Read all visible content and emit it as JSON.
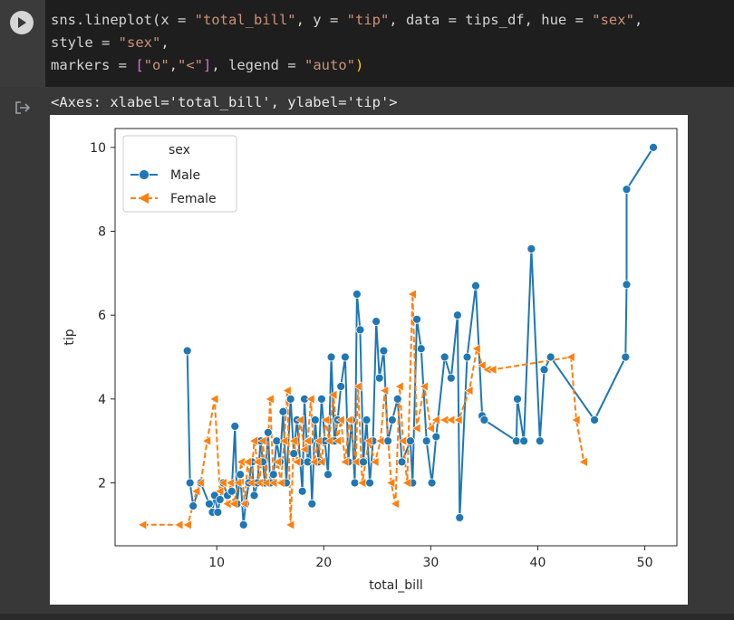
{
  "code": {
    "line1": [
      {
        "t": "sns.lineplot(x = ",
        "c": "#d4d4d4"
      },
      {
        "t": "\"total_bill\"",
        "c": "#ce9178"
      },
      {
        "t": ", y = ",
        "c": "#d4d4d4"
      },
      {
        "t": "\"tip\"",
        "c": "#ce9178"
      },
      {
        "t": ", data = tips_df, hue = ",
        "c": "#d4d4d4"
      },
      {
        "t": "\"sex\"",
        "c": "#ce9178"
      },
      {
        "t": ",",
        "c": "#d4d4d4"
      }
    ],
    "line2": [
      {
        "t": "style = ",
        "c": "#d4d4d4"
      },
      {
        "t": "\"sex\"",
        "c": "#ce9178"
      },
      {
        "t": ",",
        "c": "#d4d4d4"
      }
    ],
    "line3": [
      {
        "t": "markers = ",
        "c": "#d4d4d4"
      },
      {
        "t": "[",
        "c": "#da70d6"
      },
      {
        "t": "\"o\"",
        "c": "#ce9178"
      },
      {
        "t": ",",
        "c": "#d4d4d4"
      },
      {
        "t": "\"<\"",
        "c": "#ce9178"
      },
      {
        "t": "]",
        "c": "#da70d6"
      },
      {
        "t": ", legend = ",
        "c": "#d4d4d4"
      },
      {
        "t": "\"auto\"",
        "c": "#ce9178"
      },
      {
        "t": ")",
        "c": "#ffd700"
      }
    ]
  },
  "output_text": "<Axes: xlabel='total_bill', ylabel='tip'>",
  "icons": {
    "run": "play-icon",
    "output": "output-redirect-icon"
  },
  "chart_data": {
    "type": "line",
    "xlabel": "total_bill",
    "ylabel": "tip",
    "xlim": [
      0.5,
      53
    ],
    "ylim": [
      0.5,
      10.45
    ],
    "xticks": [
      10,
      20,
      30,
      40,
      50
    ],
    "yticks": [
      2,
      4,
      6,
      8,
      10
    ],
    "legend": {
      "title": "sex",
      "placement": "top-left"
    },
    "series": [
      {
        "name": "Male",
        "color": "#1f77b4",
        "dash": "solid",
        "marker": "o",
        "points": [
          [
            7.25,
            5.15
          ],
          [
            7.5,
            2.0
          ],
          [
            7.8,
            1.45
          ],
          [
            8.5,
            2.0
          ],
          [
            9.3,
            1.5
          ],
          [
            9.6,
            1.3
          ],
          [
            9.8,
            1.7
          ],
          [
            10.1,
            1.3
          ],
          [
            10.3,
            1.6
          ],
          [
            10.6,
            2.0
          ],
          [
            11.0,
            1.7
          ],
          [
            11.4,
            1.8
          ],
          [
            11.7,
            3.35
          ],
          [
            11.9,
            1.5
          ],
          [
            12.2,
            2.2
          ],
          [
            12.5,
            1.0
          ],
          [
            12.7,
            1.5
          ],
          [
            13.0,
            2.0
          ],
          [
            13.3,
            2.5
          ],
          [
            13.5,
            1.7
          ],
          [
            13.8,
            2.0
          ],
          [
            14.1,
            3.0
          ],
          [
            14.3,
            2.5
          ],
          [
            14.5,
            2.0
          ],
          [
            14.8,
            3.2
          ],
          [
            15.0,
            2.0
          ],
          [
            15.3,
            2.2
          ],
          [
            15.6,
            3.0
          ],
          [
            15.9,
            2.5
          ],
          [
            16.2,
            3.7
          ],
          [
            16.5,
            2.0
          ],
          [
            16.9,
            4.0
          ],
          [
            17.2,
            2.7
          ],
          [
            17.5,
            3.5
          ],
          [
            17.8,
            2.5
          ],
          [
            18.0,
            1.8
          ],
          [
            18.2,
            4.0
          ],
          [
            18.5,
            2.5
          ],
          [
            18.7,
            3.0
          ],
          [
            18.9,
            1.5
          ],
          [
            19.2,
            3.5
          ],
          [
            19.5,
            2.5
          ],
          [
            19.8,
            4.0
          ],
          [
            20.1,
            3.0
          ],
          [
            20.4,
            2.2
          ],
          [
            20.7,
            5.0
          ],
          [
            21.0,
            3.0
          ],
          [
            21.3,
            3.5
          ],
          [
            21.6,
            4.3
          ],
          [
            22.0,
            5.0
          ],
          [
            22.3,
            2.5
          ],
          [
            22.6,
            3.5
          ],
          [
            22.9,
            2.0
          ],
          [
            23.1,
            6.5
          ],
          [
            23.4,
            5.65
          ],
          [
            23.7,
            2.5
          ],
          [
            24.0,
            3.5
          ],
          [
            24.3,
            2.0
          ],
          [
            24.6,
            3.0
          ],
          [
            24.9,
            5.85
          ],
          [
            25.2,
            4.5
          ],
          [
            25.6,
            5.15
          ],
          [
            26.0,
            3.0
          ],
          [
            26.4,
            3.5
          ],
          [
            26.9,
            4.0
          ],
          [
            27.3,
            2.5
          ],
          [
            28.1,
            3.0
          ],
          [
            28.3,
            2.0
          ],
          [
            28.7,
            5.9
          ],
          [
            29.1,
            5.2
          ],
          [
            29.6,
            3.0
          ],
          [
            30.1,
            2.0
          ],
          [
            30.5,
            3.1
          ],
          [
            31.3,
            5.0
          ],
          [
            31.9,
            4.5
          ],
          [
            32.5,
            6.0
          ],
          [
            32.7,
            1.17
          ],
          [
            33.4,
            5.0
          ],
          [
            34.2,
            6.7
          ],
          [
            34.8,
            3.6
          ],
          [
            35.0,
            3.5
          ],
          [
            38.0,
            3.0
          ],
          [
            38.1,
            4.0
          ],
          [
            38.7,
            3.0
          ],
          [
            39.4,
            7.58
          ],
          [
            40.2,
            3.0
          ],
          [
            40.6,
            4.7
          ],
          [
            41.2,
            5.0
          ],
          [
            45.3,
            3.5
          ],
          [
            48.2,
            5.0
          ],
          [
            48.3,
            6.73
          ],
          [
            48.3,
            9.0
          ],
          [
            50.8,
            10.0
          ]
        ]
      },
      {
        "name": "Female",
        "color": "#ff7f0e",
        "dash": "6,3",
        "marker": "<",
        "points": [
          [
            3.1,
            1.0
          ],
          [
            6.5,
            1.0
          ],
          [
            7.3,
            1.0
          ],
          [
            8.1,
            1.8
          ],
          [
            8.5,
            2.0
          ],
          [
            9.1,
            3.0
          ],
          [
            9.8,
            4.0
          ],
          [
            10.3,
            1.8
          ],
          [
            10.6,
            2.0
          ],
          [
            11.0,
            1.5
          ],
          [
            11.3,
            2.0
          ],
          [
            11.6,
            1.5
          ],
          [
            12.0,
            2.0
          ],
          [
            12.3,
            2.5
          ],
          [
            12.6,
            1.5
          ],
          [
            12.9,
            2.5
          ],
          [
            13.2,
            2.0
          ],
          [
            13.5,
            3.0
          ],
          [
            13.8,
            2.5
          ],
          [
            14.0,
            2.0
          ],
          [
            14.3,
            3.0
          ],
          [
            14.6,
            2.0
          ],
          [
            15.0,
            4.0
          ],
          [
            15.3,
            2.0
          ],
          [
            15.7,
            2.5
          ],
          [
            16.0,
            2.0
          ],
          [
            16.3,
            3.0
          ],
          [
            16.6,
            4.2
          ],
          [
            16.9,
            1.0
          ],
          [
            17.2,
            3.0
          ],
          [
            17.5,
            2.5
          ],
          [
            17.8,
            3.5
          ],
          [
            18.2,
            2.8
          ],
          [
            18.5,
            3.0
          ],
          [
            18.8,
            4.0
          ],
          [
            19.1,
            2.5
          ],
          [
            19.5,
            3.0
          ],
          [
            19.8,
            2.5
          ],
          [
            20.2,
            3.5
          ],
          [
            20.5,
            3.0
          ],
          [
            20.9,
            4.1
          ],
          [
            21.3,
            3.0
          ],
          [
            21.6,
            3.5
          ],
          [
            22.0,
            2.5
          ],
          [
            22.4,
            3.5
          ],
          [
            23.0,
            2.5
          ],
          [
            23.2,
            4.3
          ],
          [
            23.6,
            2.0
          ],
          [
            24.2,
            3.0
          ],
          [
            24.8,
            2.5
          ],
          [
            25.3,
            3.0
          ],
          [
            25.7,
            4.2
          ],
          [
            26.3,
            2.0
          ],
          [
            26.7,
            1.5
          ],
          [
            27.1,
            4.3
          ],
          [
            27.4,
            3.0
          ],
          [
            27.8,
            2.0
          ],
          [
            28.3,
            6.5
          ],
          [
            28.7,
            3.3
          ],
          [
            29.4,
            4.3
          ],
          [
            30.0,
            3.3
          ],
          [
            30.5,
            3.5
          ],
          [
            31.3,
            3.5
          ],
          [
            31.9,
            3.5
          ],
          [
            32.6,
            3.5
          ],
          [
            33.6,
            4.2
          ],
          [
            34.3,
            5.2
          ],
          [
            34.8,
            4.8
          ],
          [
            35.3,
            4.7
          ],
          [
            35.8,
            4.7
          ],
          [
            43.1,
            5.0
          ],
          [
            43.6,
            3.5
          ],
          [
            44.3,
            2.5
          ]
        ]
      }
    ]
  }
}
